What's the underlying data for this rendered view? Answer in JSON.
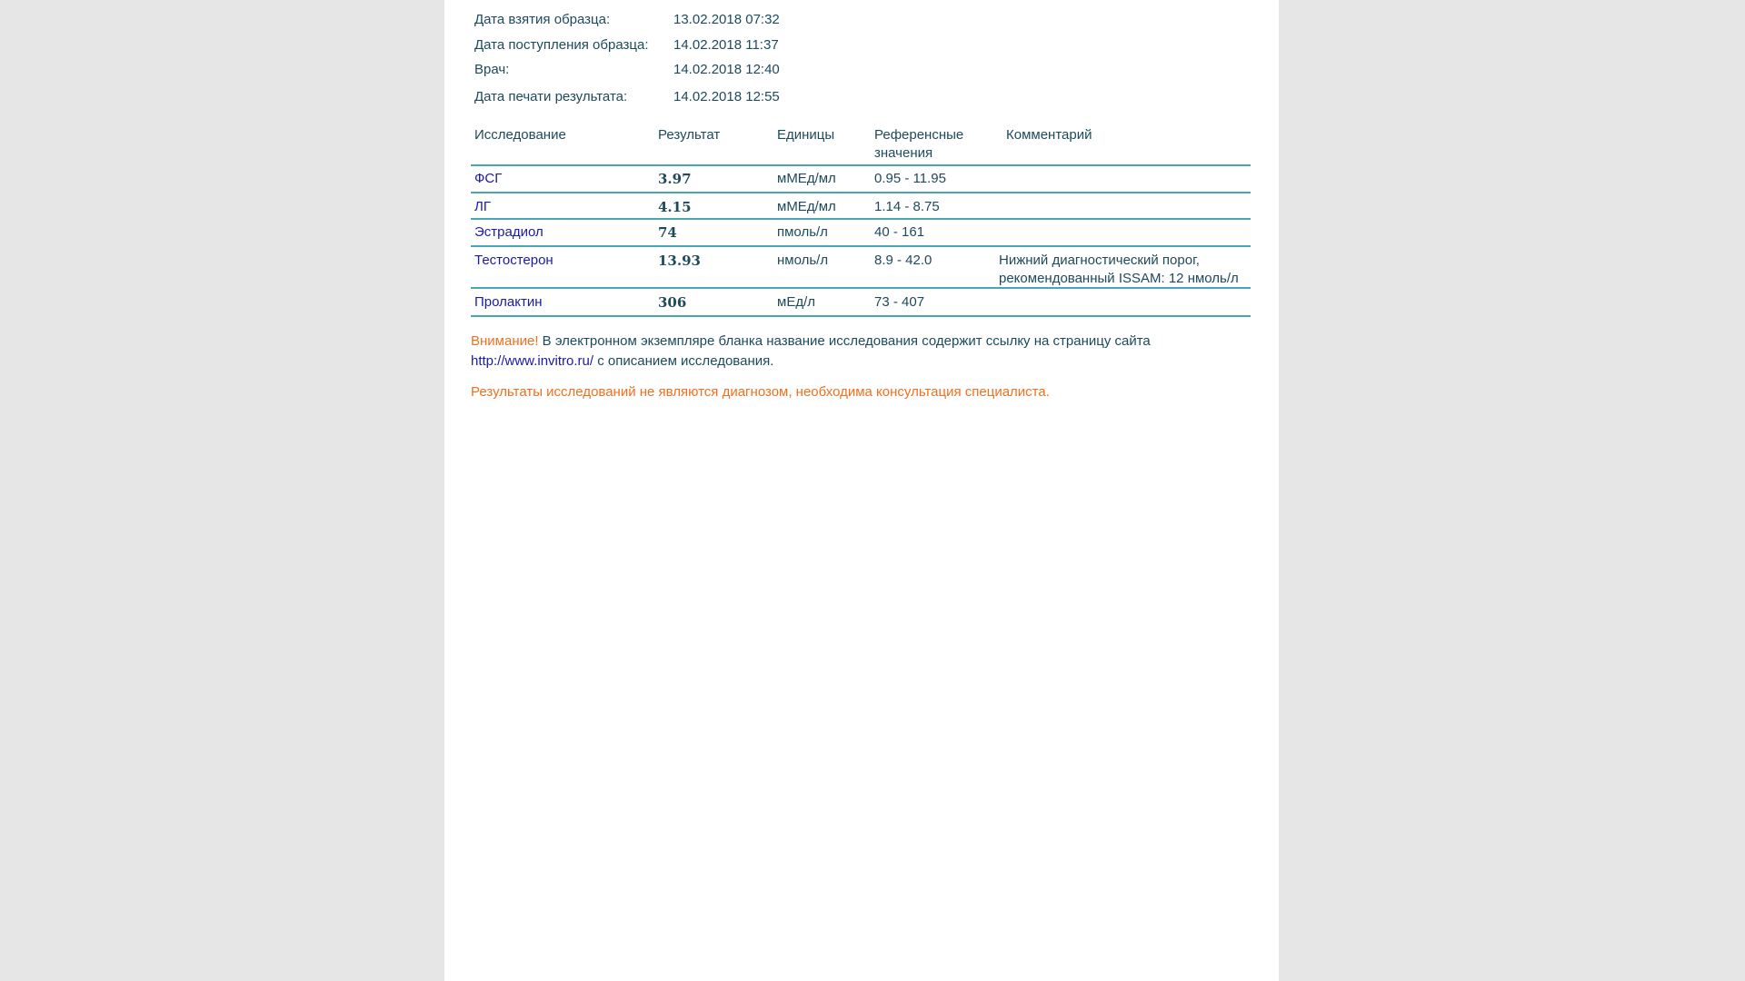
{
  "header_fields": [
    {
      "label": "Дата взятия образца:",
      "value": "13.02.2018 07:32"
    },
    {
      "label": "Дата поступления образца:",
      "value": "14.02.2018 11:37"
    },
    {
      "label": "Врач:",
      "value": "14.02.2018 12:40"
    },
    {
      "label": "Дата печати результата:",
      "value": "14.02.2018 12:55"
    }
  ],
  "table": {
    "columns": [
      "Исследование",
      "Результат",
      "Единицы",
      "Референсные значения",
      "Комментарий"
    ],
    "rows": [
      [
        "ФСГ",
        "3.97",
        "мМЕд/мл",
        "0.95 - 11.95",
        ""
      ],
      [
        "ЛГ",
        "4.15",
        "мМЕд/мл",
        "1.14 - 8.75",
        ""
      ],
      [
        "Эстрадиол",
        "74",
        "пмоль/л",
        "40 - 161",
        ""
      ],
      [
        "Тестостерон",
        "13.93",
        "нмоль/л",
        "8.9 - 42.0",
        "Нижний диагностический порог, рекомендованный ISSAM: 12 нмоль/л"
      ],
      [
        "Пролактин",
        "306",
        "мЕд/л",
        "73 - 407",
        ""
      ]
    ]
  },
  "note": {
    "warning": "Внимание!",
    "text1": "В электронном экземпляре бланка название исследования содержит ссылку на страницу сайта",
    "link": "http://www.invitro.ru/",
    "text2": "с описанием исследования."
  },
  "disclaimer": "Результаты исследований не являются диагнозом, необходима консультация специалиста."
}
